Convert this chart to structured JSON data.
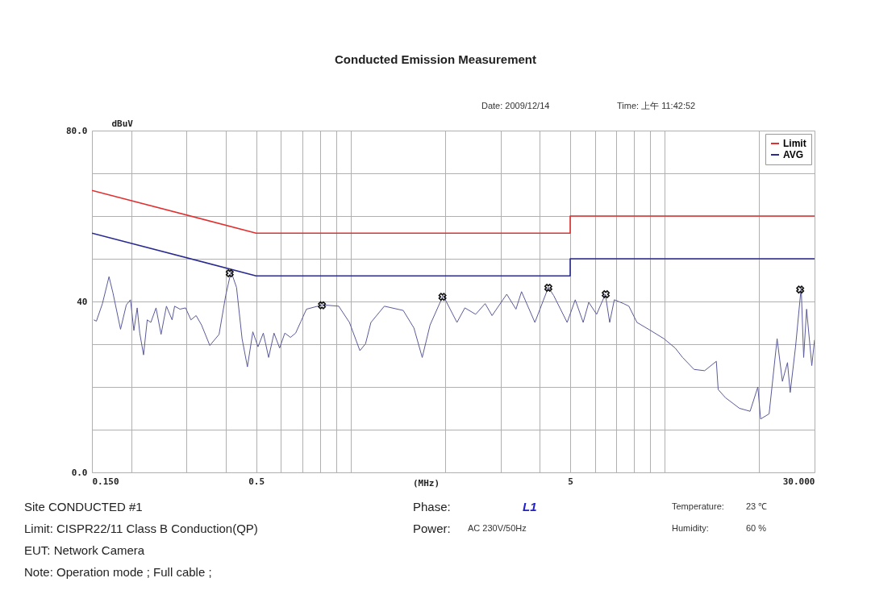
{
  "chart_data": {
    "type": "line",
    "title": "Conducted Emission Measurement",
    "xlabel": "(MHz)",
    "ylabel": "dBuV",
    "log": "x",
    "grid": true,
    "legend": "top right",
    "line_style": "solid",
    "xlim": [
      0.15,
      30
    ],
    "ylim": [
      0,
      80
    ],
    "xticks": [
      {
        "value": 0.15,
        "label": "0.150"
      },
      {
        "value": 0.2,
        "label": null
      },
      {
        "value": 0.3,
        "label": null
      },
      {
        "value": 0.4,
        "label": null
      },
      0.5,
      {
        "value": 0.6,
        "label": null
      },
      {
        "value": 0.7,
        "label": null
      },
      {
        "value": 0.8,
        "label": null
      },
      {
        "value": 0.9,
        "label": null
      },
      {
        "value": 1,
        "label": null
      },
      {
        "value": 2,
        "label": null
      },
      {
        "value": 3,
        "label": null
      },
      {
        "value": 4,
        "label": null
      },
      5,
      {
        "value": 6,
        "label": null
      },
      {
        "value": 7,
        "label": null
      },
      {
        "value": 8,
        "label": null
      },
      {
        "value": 9,
        "label": null
      },
      {
        "value": 10,
        "label": null
      },
      {
        "value": 20,
        "label": null
      },
      {
        "value": 30,
        "label": "30.000"
      }
    ],
    "yticks": [
      {
        "value": 0,
        "label": "0.0"
      },
      {
        "value": 10,
        "label": null
      },
      {
        "value": 20,
        "label": null
      },
      {
        "value": 30,
        "label": null
      },
      40,
      {
        "value": 50,
        "label": null
      },
      {
        "value": 60,
        "label": null
      },
      {
        "value": 70,
        "label": null
      },
      {
        "value": 80,
        "label": "80.0"
      }
    ],
    "series": [
      {
        "name": "Limit",
        "marker": "none",
        "color": "#e03030",
        "x": [
          0.15,
          0.5,
          5,
          5,
          30
        ],
        "values": [
          66,
          56,
          56,
          60,
          60
        ]
      },
      {
        "name": "AVG",
        "marker": "none",
        "color": "#2a2a90",
        "x": [
          0.15,
          0.5,
          5,
          5,
          30
        ],
        "values": [
          56,
          46,
          46,
          50,
          50
        ]
      },
      {
        "marker": "none",
        "color": "#5a5a9a",
        "x": [
          0.152,
          0.155,
          0.162,
          0.17,
          0.175,
          0.185,
          0.193,
          0.199,
          0.204,
          0.209,
          0.213,
          0.219,
          0.225,
          0.231,
          0.24,
          0.249,
          0.259,
          0.27,
          0.275,
          0.286,
          0.298,
          0.31,
          0.322,
          0.335,
          0.356,
          0.381,
          0.4,
          0.416,
          0.433,
          0.451,
          0.469,
          0.488,
          0.507,
          0.527,
          0.548,
          0.57,
          0.594,
          0.617,
          0.643,
          0.668,
          0.695,
          0.723,
          0.814,
          0.916,
          0.991,
          1.07,
          1.115,
          1.16,
          1.28,
          1.47,
          1.59,
          1.69,
          1.79,
          1.97,
          2.18,
          2.31,
          2.5,
          2.68,
          2.82,
          3.14,
          3.36,
          3.5,
          3.86,
          4.26,
          4.43,
          4.89,
          5.19,
          5.5,
          5.73,
          6.07,
          6.47,
          6.68,
          6.91,
          7.4,
          7.69,
          8.16,
          9.02,
          9.94,
          10.8,
          11.4,
          12.4,
          13.4,
          14.6,
          14.8,
          15.6,
          17.3,
          18.7,
          19.8,
          20.2,
          21.5,
          22.8,
          23.7,
          24.6,
          25.1,
          26.1,
          27.2,
          27.7,
          28.3,
          29.4,
          30
        ],
        "values": [
          35.7,
          35.4,
          39.5,
          45.8,
          42.0,
          33.5,
          39.2,
          40.4,
          33.2,
          38.5,
          32.6,
          27.5,
          35.7,
          35.1,
          38.5,
          32.3,
          38.9,
          35.7,
          38.9,
          38.2,
          38.5,
          35.7,
          36.7,
          34.5,
          29.7,
          32.3,
          41.4,
          47.0,
          43.3,
          31.3,
          24.7,
          32.9,
          29.4,
          32.6,
          26.9,
          32.6,
          29.1,
          32.6,
          31.6,
          32.6,
          35.4,
          38.2,
          39.2,
          38.9,
          35.1,
          28.5,
          30.1,
          35.1,
          38.9,
          37.9,
          33.8,
          26.9,
          34.5,
          41.4,
          35.1,
          38.5,
          37.0,
          39.5,
          36.7,
          41.7,
          38.2,
          42.3,
          35.1,
          43.3,
          41.4,
          35.1,
          40.4,
          35.1,
          39.8,
          37.0,
          41.7,
          35.1,
          40.4,
          39.5,
          38.9,
          35.1,
          33.2,
          31.3,
          29.1,
          26.9,
          24.1,
          23.8,
          26.0,
          19.4,
          17.5,
          15.0,
          14.3,
          20.0,
          12.5,
          13.7,
          31.3,
          21.3,
          25.7,
          18.7,
          29.4,
          43.3,
          26.9,
          38.2,
          25.0,
          31.0
        ]
      },
      {
        "type": "scatter",
        "marker": "cross",
        "color": "#111111",
        "x": [
          0.412,
          0.81,
          1.96,
          4.26,
          6.49,
          27.0
        ],
        "values": [
          46.6,
          39.1,
          41.1,
          43.2,
          41.7,
          42.8
        ]
      }
    ],
    "annotations": [
      "Date: 2009/12/14",
      "Time: 上午 11:42:52",
      "Site CONDUCTED #1",
      "Phase:",
      "L1",
      "Temperature:",
      "23 ℃",
      "Limit: CISPR22/11 Class B Conduction(QP)",
      "Power:",
      "AC 230V/50Hz",
      "Humidity:",
      "60 %",
      "EUT: Network Camera",
      "Note: Operation mode ; Full cable ;"
    ]
  }
}
